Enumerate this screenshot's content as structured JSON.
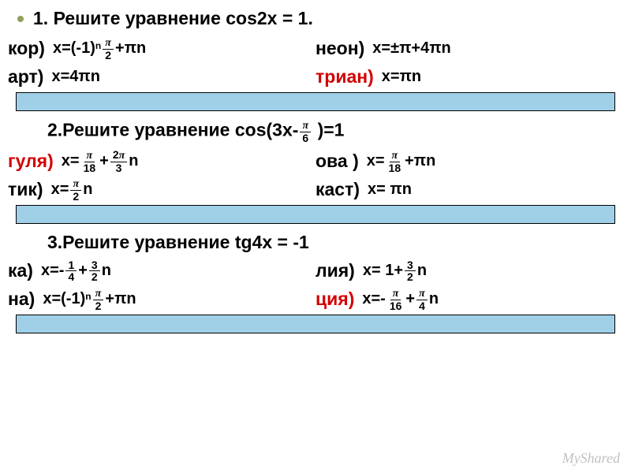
{
  "q1": {
    "title": "1.   Решите уравнение cos2x = 1.",
    "options": [
      {
        "label": "кор)",
        "color": "black",
        "formula_html": "x=(-1)<span class='sup'>n</span> <span class='frac'><span class='num'><span class='pi'>π</span></span><span class='den'>2</span></span> +πn"
      },
      {
        "label": "неон)",
        "color": "black",
        "formula_html": "x=±π+4πn"
      },
      {
        "label": "арт)",
        "color": "black",
        "formula_html": "x=4πn"
      },
      {
        "label": "триан)",
        "color": "red",
        "formula_html": "x=πn"
      }
    ]
  },
  "q2": {
    "title_html": "2.Решите уравнение cos(3x-<span class='frac'><span class='num'><span class='pi'>π</span></span><span class='den'>6</span></span> )=1",
    "options": [
      {
        "label": "гуля)",
        "color": "red",
        "formula_html": "x= <span class='frac'><span class='num'><span class='pi'>π</span></span><span class='den'>18</span></span> + <span class='frac'><span class='num'>2<span class='pi'>π</span></span><span class='den'>3</span></span> n"
      },
      {
        "label": "ова )",
        "color": "black",
        "formula_html": "x= <span class='frac'><span class='num'><span class='pi'>π</span></span><span class='den'>18</span></span> +πn"
      },
      {
        "label": "тик)",
        "color": "black",
        "formula_html": "x= <span class='frac'><span class='num'><span class='pi'>π</span></span><span class='den'>2</span></span>  n"
      },
      {
        "label": "каст)",
        "color": "black",
        "formula_html": "x= πn"
      }
    ]
  },
  "q3": {
    "title": "3.Решите уравнение tg4x = -1",
    "options": [
      {
        "label": "ка)",
        "color": "black",
        "formula_html": "x=- <span class='frac'><span class='num'>1</span><span class='den'>4</span></span> + <span class='frac'><span class='num'>3</span><span class='den'>2</span></span> n"
      },
      {
        "label": "лия)",
        "color": "black",
        "formula_html": "x= 1+ <span class='frac'><span class='num'>3</span><span class='den'>2</span></span> n"
      },
      {
        "label": "на)",
        "color": "black",
        "formula_html": "x=(-1)<span class='sup'>n</span> <span class='frac'><span class='num'><span class='pi'>π</span></span><span class='den'>2</span></span>  +πn"
      },
      {
        "label": "ция)",
        "color": "red",
        "formula_html": "x=- <span class='frac'><span class='num'><span class='pi'>π</span></span><span class='den'>16</span></span> + <span class='frac'><span class='num'><span class='pi'>π</span></span><span class='den'>4</span></span> n"
      }
    ]
  },
  "watermark": "MyShared",
  "colors": {
    "bar_bg": "#9fd0e8",
    "red": "#d40000",
    "bullet": "#8fa060"
  }
}
